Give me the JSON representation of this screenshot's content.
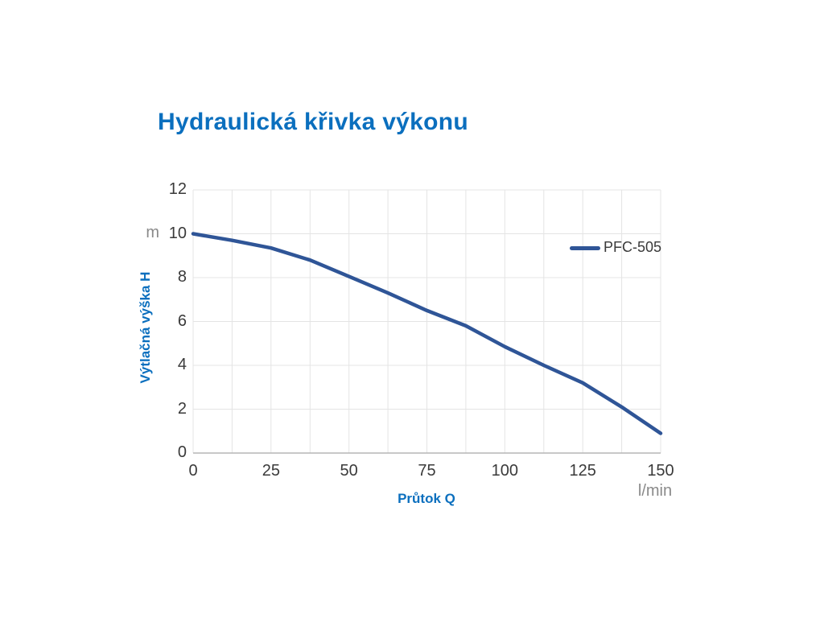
{
  "title": "Hydraulická křivka výkonu",
  "legend": {
    "entries": [
      {
        "label": "PFC-505",
        "color": "#2f5597"
      }
    ],
    "position": "inside-top-right"
  },
  "colors": {
    "background": "#ffffff",
    "title_text": "#0b6fbe",
    "axis_title_text": "#0b6fbe",
    "tick_text": "#3a3a3a",
    "unit_text": "#8a8a8a",
    "gridline": "#e4e4e4",
    "axis_line": "#b6b6b6",
    "series_line": "#2f5597"
  },
  "chart_data": {
    "type": "line",
    "title": "Hydraulická křivka výkonu",
    "xlabel": "Průtok Q",
    "x_unit": "l/min",
    "ylabel": "Výtlačná výška H",
    "y_unit": "m",
    "xlim": [
      0,
      150
    ],
    "ylim": [
      0,
      12
    ],
    "x_ticks": [
      0,
      25,
      50,
      75,
      100,
      125,
      150
    ],
    "y_ticks": [
      0,
      2,
      4,
      6,
      8,
      10,
      12
    ],
    "x_minor_grid_step": 12.5,
    "grid": true,
    "legend_position": "inside top-right",
    "series": [
      {
        "name": "PFC-505",
        "color": "#2f5597",
        "x": [
          0,
          12.5,
          25,
          37.5,
          50,
          62.5,
          75,
          87.5,
          100,
          112.5,
          125,
          137.5,
          150
        ],
        "y": [
          10,
          9.7,
          9.35,
          8.8,
          8.05,
          7.3,
          6.5,
          5.8,
          4.85,
          4.0,
          3.2,
          2.1,
          0.9
        ]
      }
    ]
  }
}
